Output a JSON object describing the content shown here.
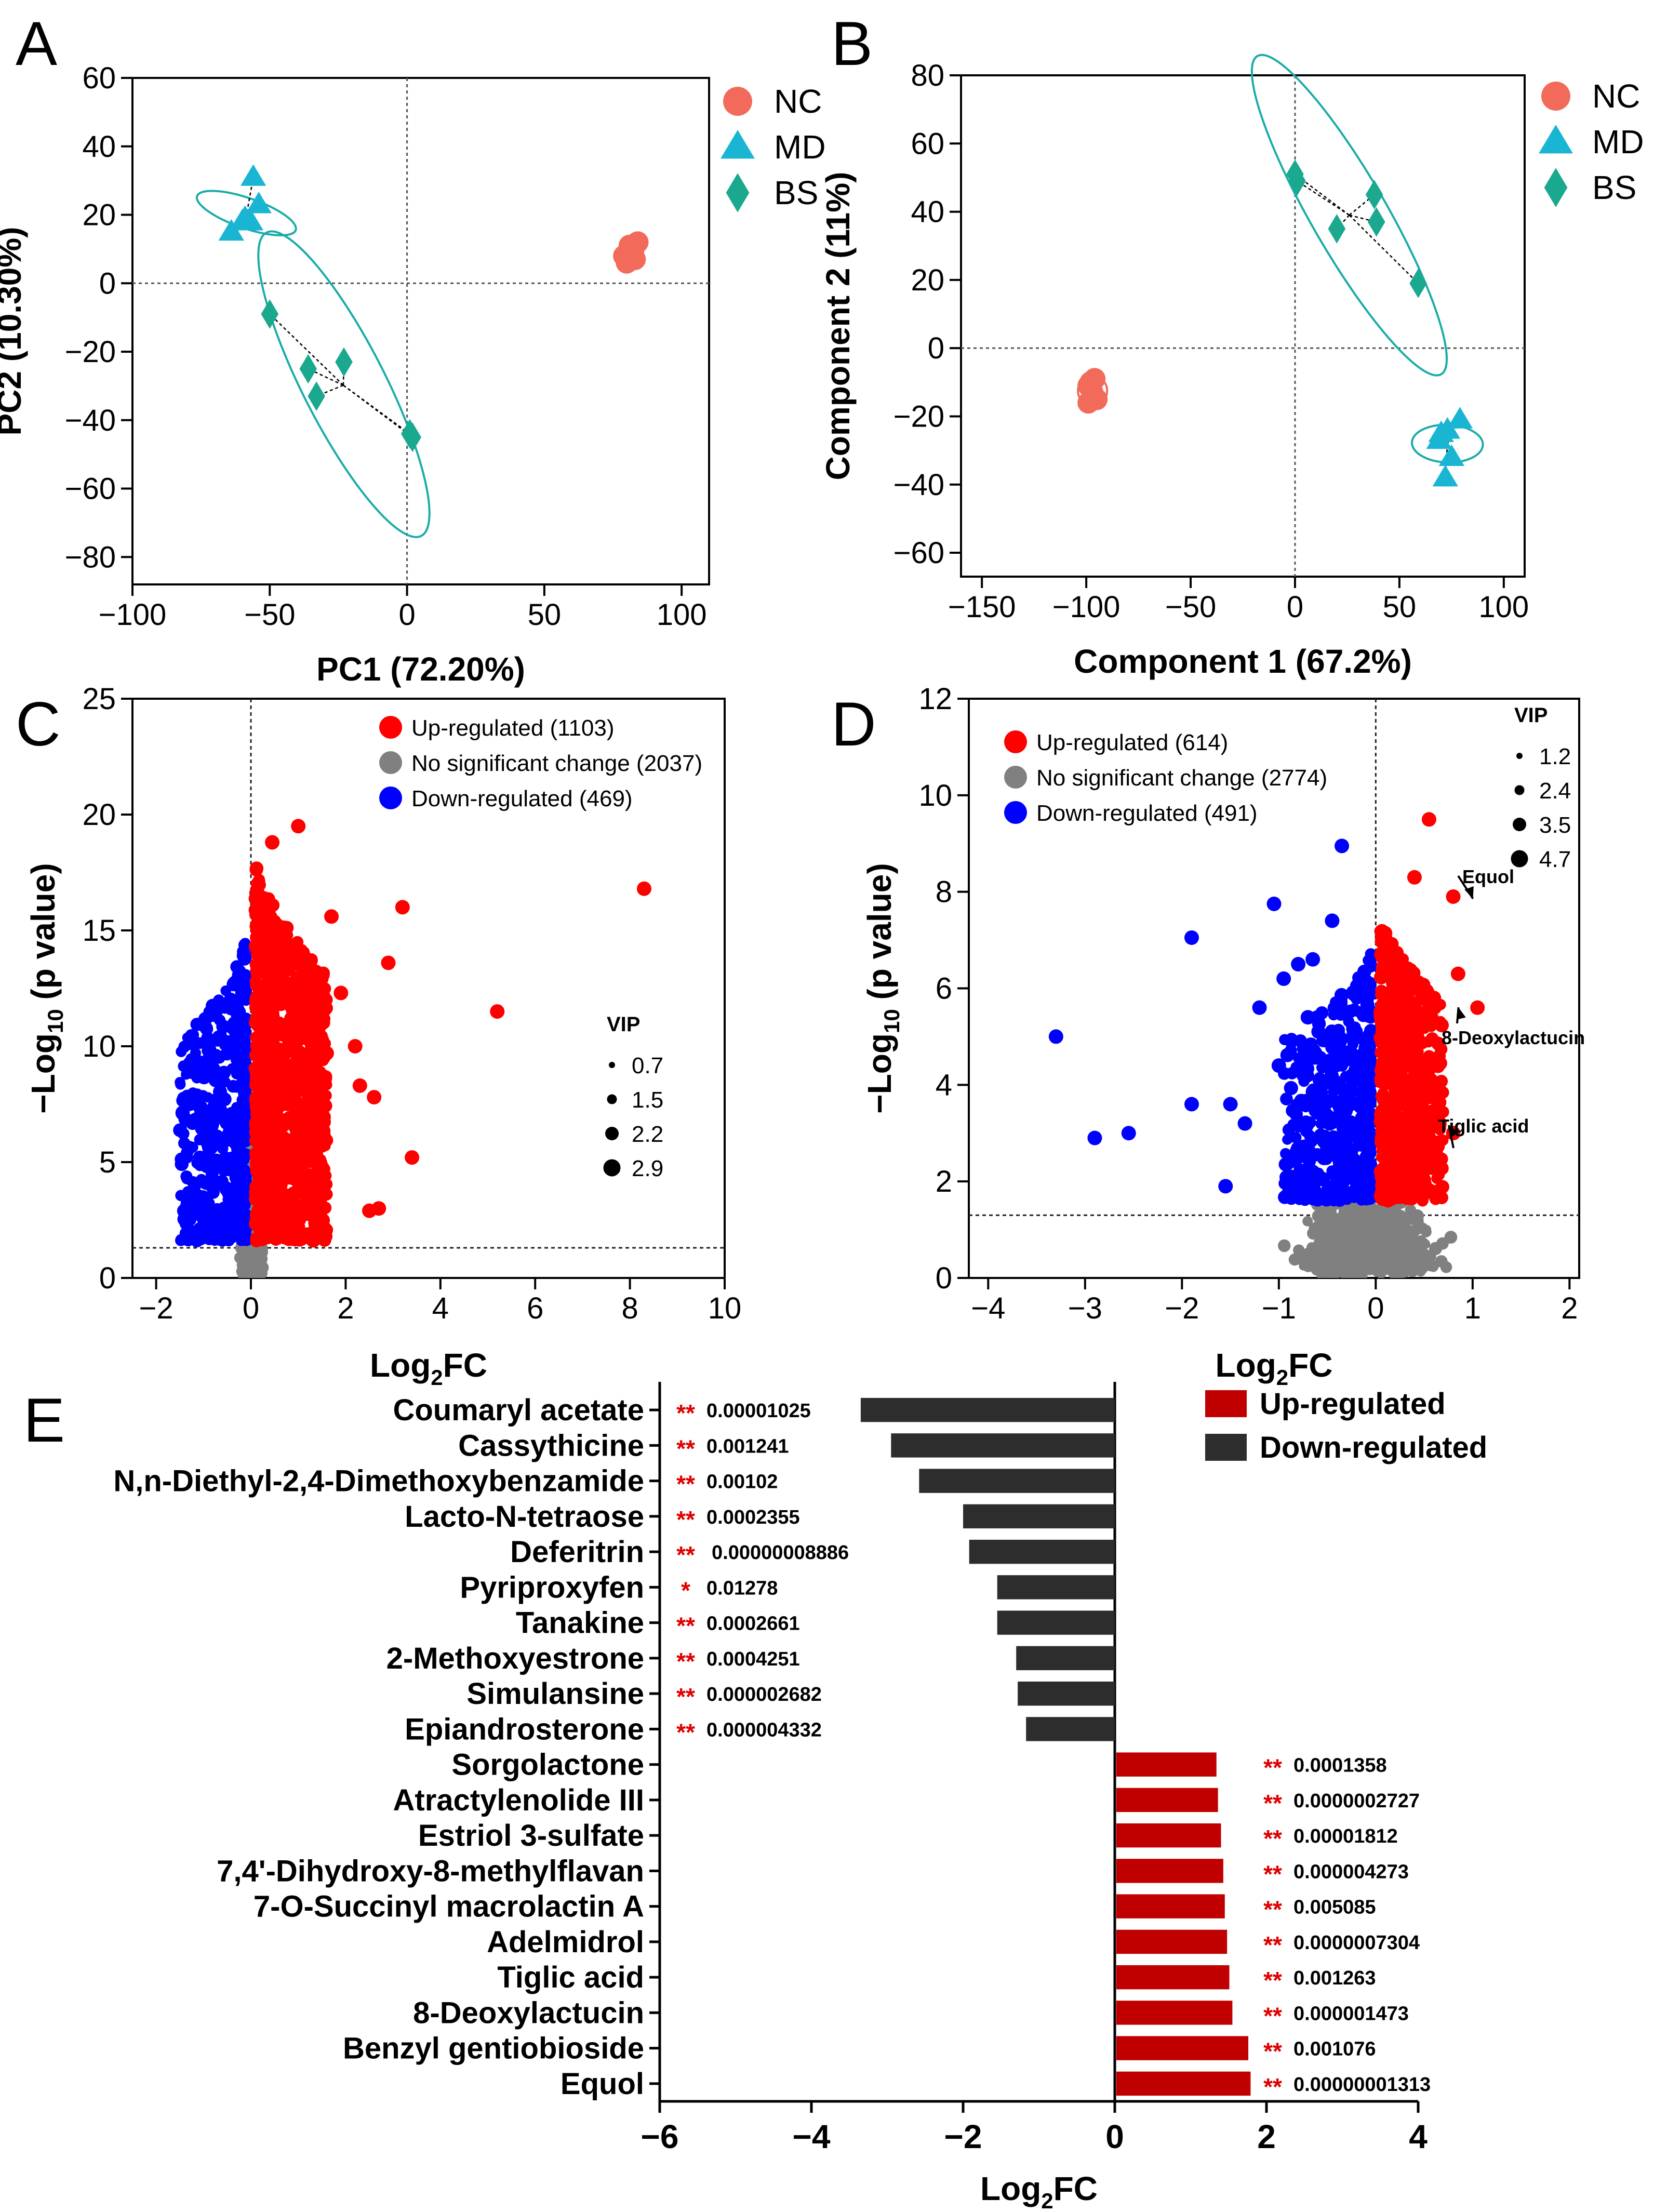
{
  "colors": {
    "nc": "#f26b5a",
    "md": "#1ab5d3",
    "bs": "#1aa88f",
    "ellipse": "#1aaca8",
    "ellipse_nc": "#f26b5a",
    "up": "#ff0000",
    "down": "#0000ff",
    "ns": "#808080",
    "bar_up": "#c00000",
    "bar_down": "#2d2d2d",
    "star": "#e00000",
    "axis": "#000000"
  },
  "chart_data": [
    {
      "id": "A",
      "type": "scatter",
      "panel_letter": "A",
      "xlabel": "PC1 (72.20%)",
      "ylabel": "PC2 (10.30%)",
      "xlim": [
        -100,
        110
      ],
      "ylim": [
        -88,
        60
      ],
      "xticks": [
        -100,
        -50,
        0,
        50,
        100
      ],
      "yticks": [
        -80,
        -60,
        -40,
        -20,
        0,
        20,
        40,
        60
      ],
      "legend": [
        {
          "name": "NC",
          "marker": "circle"
        },
        {
          "name": "MD",
          "marker": "triangle"
        },
        {
          "name": "BS",
          "marker": "diamond"
        }
      ],
      "series": [
        {
          "name": "NC",
          "marker": "circle",
          "points": [
            [
              80,
              6
            ],
            [
              82,
              9
            ],
            [
              84,
              12
            ],
            [
              81,
              11
            ],
            [
              79,
              8
            ],
            [
              83,
              7
            ]
          ]
        },
        {
          "name": "MD",
          "marker": "triangle",
          "points": [
            [
              -64,
              15
            ],
            [
              -59,
              19
            ],
            [
              -56,
              31
            ],
            [
              -54,
              23
            ],
            [
              -60,
              18
            ],
            [
              -57,
              18
            ]
          ]
        },
        {
          "name": "BS",
          "marker": "diamond",
          "points": [
            [
              -50,
              -9
            ],
            [
              -36,
              -25
            ],
            [
              -23,
              -23
            ],
            [
              -33,
              -33
            ],
            [
              1,
              -44
            ],
            [
              2,
              -45
            ]
          ]
        }
      ],
      "centroids": [
        {
          "series": "MD",
          "point": [
            -58.3,
            20.7
          ]
        },
        {
          "series": "BS",
          "point": [
            -23.2,
            -29.8
          ]
        }
      ],
      "ellipses": [
        {
          "series": "NC",
          "center": [
            81.5,
            8.8
          ],
          "rx": 4.5,
          "ry": 5.5,
          "angle": -90
        },
        {
          "series": "MD",
          "center": [
            -58.5,
            20.5
          ],
          "rx": 19,
          "ry": 5.5,
          "angle": -71
        },
        {
          "series": "BS",
          "center": [
            -23,
            -29.5
          ],
          "rx": 62,
          "ry": 15,
          "angle": -27
        }
      ]
    },
    {
      "id": "B",
      "type": "scatter",
      "panel_letter": "B",
      "xlabel": "Component 1 (67.2%)",
      "ylabel": "Component 2 (11%)",
      "xlim": [
        -160,
        110
      ],
      "ylim": [
        -67,
        80
      ],
      "xticks": [
        -150,
        -100,
        -50,
        0,
        50,
        100
      ],
      "yticks": [
        -60,
        -40,
        -20,
        0,
        20,
        40,
        60,
        80
      ],
      "legend": [
        {
          "name": "NC",
          "marker": "circle"
        },
        {
          "name": "MD",
          "marker": "triangle"
        },
        {
          "name": "BS",
          "marker": "diamond"
        }
      ],
      "series": [
        {
          "name": "NC",
          "marker": "circle",
          "points": [
            [
              -99,
              -16
            ],
            [
              -97,
              -13
            ],
            [
              -96,
              -9
            ],
            [
              -99,
              -11
            ],
            [
              -95,
              -15
            ],
            [
              -98,
              -10
            ]
          ]
        },
        {
          "name": "MD",
          "marker": "triangle",
          "points": [
            [
              69,
              -27
            ],
            [
              73,
              -24
            ],
            [
              79,
              -21
            ],
            [
              75,
              -32
            ],
            [
              72,
              -38
            ],
            [
              70,
              -25
            ]
          ]
        },
        {
          "name": "BS",
          "marker": "diamond",
          "points": [
            [
              0,
              51
            ],
            [
              1,
              49
            ],
            [
              38,
              45
            ],
            [
              39,
              37
            ],
            [
              20,
              35
            ],
            [
              59,
              19
            ]
          ]
        }
      ],
      "centroids": [
        {
          "series": "BS",
          "point": [
            26,
            39
          ]
        },
        {
          "series": "MD",
          "point": [
            73,
            -28
          ]
        }
      ],
      "ellipses": [
        {
          "series": "NC",
          "center": [
            -97,
            -12.5
          ],
          "rx": 7,
          "ry": 7,
          "angle": -90
        },
        {
          "series": "MD",
          "center": [
            73,
            -28
          ],
          "rx": 17,
          "ry": 9,
          "angle": -88
        },
        {
          "series": "BS",
          "center": [
            26,
            39
          ],
          "rx": 88,
          "ry": 18,
          "angle": -30
        }
      ]
    },
    {
      "id": "C",
      "type": "scatter",
      "panel_letter": "C",
      "xlabel_main": "Log",
      "xlabel_sub": "2",
      "xlabel_tail": "FC",
      "ylabel_main": "−Log",
      "ylabel_sub": "10",
      "ylabel_tail": " (p value)",
      "xlim": [
        -2.5,
        10
      ],
      "ylim": [
        0,
        25
      ],
      "xticks": [
        -2,
        0,
        2,
        4,
        6,
        8,
        10
      ],
      "yticks": [
        0,
        5,
        10,
        15,
        20,
        25
      ],
      "threshold_y": 1.3,
      "legend": [
        {
          "label": "Up-regulated (1103)",
          "class": "up"
        },
        {
          "label": "No significant change (2037)",
          "class": "ns"
        },
        {
          "label": "Down-regulated (469)",
          "class": "down"
        }
      ],
      "vip_title": "VIP",
      "vip_legend": [
        "0.7",
        "1.5",
        "2.2",
        "2.9"
      ],
      "cloud": {
        "down": {
          "n": 469,
          "x_range": [
            -1.5,
            -0.1
          ],
          "y_max": 14.8
        },
        "ns": {
          "n": 700,
          "x_range": [
            -0.3,
            0.3
          ],
          "y_max": 11
        },
        "up": {
          "n": 1103,
          "x_range": [
            0.1,
            1.6
          ],
          "y_max": 18
        }
      },
      "highlight_points": [
        [
          8.3,
          16.8
        ],
        [
          5.2,
          11.5
        ],
        [
          3.2,
          16.0
        ],
        [
          2.9,
          13.6
        ],
        [
          3.4,
          5.2
        ],
        [
          2.3,
          8.3
        ],
        [
          2.6,
          7.8
        ],
        [
          1.7,
          15.6
        ],
        [
          1.0,
          19.5
        ],
        [
          0.45,
          18.8
        ],
        [
          2.7,
          3.0
        ],
        [
          2.5,
          2.9
        ],
        [
          1.9,
          12.3
        ],
        [
          2.2,
          10.0
        ],
        [
          1.6,
          9.7
        ]
      ]
    },
    {
      "id": "D",
      "type": "scatter",
      "panel_letter": "D",
      "xlabel_main": "Log",
      "xlabel_sub": "2",
      "xlabel_tail": "FC",
      "ylabel_main": "−Log",
      "ylabel_sub": "10",
      "ylabel_tail": " (p value)",
      "xlim": [
        -4.2,
        2.1
      ],
      "ylim": [
        0,
        12
      ],
      "xticks": [
        -4,
        -3,
        -2,
        -1,
        0,
        1,
        2
      ],
      "yticks": [
        0,
        2,
        4,
        6,
        8,
        10,
        12
      ],
      "threshold_y": 1.3,
      "legend": [
        {
          "label": "Up-regulated (614)",
          "class": "up"
        },
        {
          "label": "No significant change (2774)",
          "class": "ns"
        },
        {
          "label": "Down-regulated (491)",
          "class": "down"
        }
      ],
      "vip_title": "VIP",
      "vip_legend": [
        "1.2",
        "2.4",
        "3.5",
        "4.7"
      ],
      "cloud": {
        "down": {
          "n": 491,
          "x_range": [
            -0.95,
            -0.05
          ],
          "y_max": 6.8
        },
        "ns": {
          "n": 900,
          "x_range": [
            -1.0,
            0.8
          ],
          "y_max": 2.2
        },
        "up": {
          "n": 614,
          "x_range": [
            0.05,
            0.7
          ],
          "y_max": 7.5
        }
      },
      "highlight_points_down": [
        [
          -3.3,
          5.0
        ],
        [
          -2.9,
          2.9
        ],
        [
          -2.55,
          3.0
        ],
        [
          -1.9,
          7.05
        ],
        [
          -1.5,
          3.6
        ],
        [
          -1.55,
          1.9
        ],
        [
          -1.35,
          3.2
        ],
        [
          -1.2,
          5.6
        ],
        [
          -1.05,
          7.75
        ],
        [
          -0.95,
          6.2
        ],
        [
          -0.8,
          6.5
        ],
        [
          -0.65,
          6.6
        ],
        [
          -0.45,
          7.4
        ],
        [
          -0.35,
          8.95
        ],
        [
          -1.9,
          3.6
        ],
        [
          -1.0,
          4.4
        ],
        [
          -0.7,
          5.4
        ]
      ],
      "highlight_points_up": [
        [
          0.55,
          9.5
        ],
        [
          0.8,
          7.9
        ],
        [
          0.85,
          6.3
        ],
        [
          1.05,
          5.6
        ],
        [
          0.4,
          8.3
        ],
        [
          0.55,
          2.9
        ],
        [
          0.8,
          3.0
        ],
        [
          0.6,
          5.8
        ]
      ],
      "annotations": [
        {
          "label": "Equol",
          "point": [
            0.8,
            7.9
          ]
        },
        {
          "label": "8-Deoxylactucin",
          "point": [
            0.65,
            5.8
          ]
        },
        {
          "label": "Tiglic acid",
          "point": [
            0.55,
            3.1
          ]
        }
      ]
    },
    {
      "id": "E",
      "type": "bar",
      "panel_letter": "E",
      "orientation": "horizontal",
      "xlabel_main": "Log",
      "xlabel_sub": "2",
      "xlabel_tail": "FC",
      "xlim": [
        -6,
        4
      ],
      "xticks": [
        -6,
        -4,
        -2,
        0,
        2,
        4
      ],
      "legend": [
        {
          "label": "Up-regulated",
          "class": "up"
        },
        {
          "label": "Down-regulated",
          "class": "down"
        }
      ],
      "categories": [
        "Coumaryl acetate",
        "Cassythicine",
        "N,n-Diethyl-2,4-Dimethoxybenzamide",
        "Lacto-N-tetraose",
        "Deferitrin",
        "Pyriproxyfen",
        "Tanakine",
        "2-Methoxyestrone",
        "Simulansine",
        "Epiandrosterone",
        "Sorgolactone",
        "Atractylenolide III",
        "Estriol 3-sulfate",
        "7,4'-Dihydroxy-8-methylflavan",
        "7-O-Succinyl macrolactin A",
        "Adelmidrol",
        "Tiglic acid",
        "8-Deoxylactucin",
        "Benzyl gentiobioside",
        "Equol"
      ],
      "values": [
        -3.35,
        -2.95,
        -2.58,
        -2.0,
        -1.92,
        -1.55,
        -1.55,
        -1.3,
        -1.28,
        -1.17,
        1.32,
        1.34,
        1.38,
        1.41,
        1.43,
        1.46,
        1.49,
        1.53,
        1.74,
        1.77
      ],
      "stars": [
        "**",
        "**",
        "**",
        "**",
        "**",
        "*",
        "**",
        "**",
        "**",
        "**",
        "**",
        "**",
        "**",
        "**",
        "**",
        "**",
        "**",
        "**",
        "**",
        "**"
      ],
      "pvalues": [
        "0.00001025",
        "0.001241",
        "0.00102",
        "0.0002355",
        "0.00000008886",
        "0.01278",
        "0.0002661",
        "0.0004251",
        "0.000002682",
        "0.000004332",
        "0.0001358",
        "0.0000002727",
        "0.00001812",
        "0.000004273",
        "0.005085",
        "0.0000007304",
        "0.001263",
        "0.000001473",
        "0.001076",
        "0.00000001313"
      ]
    }
  ]
}
